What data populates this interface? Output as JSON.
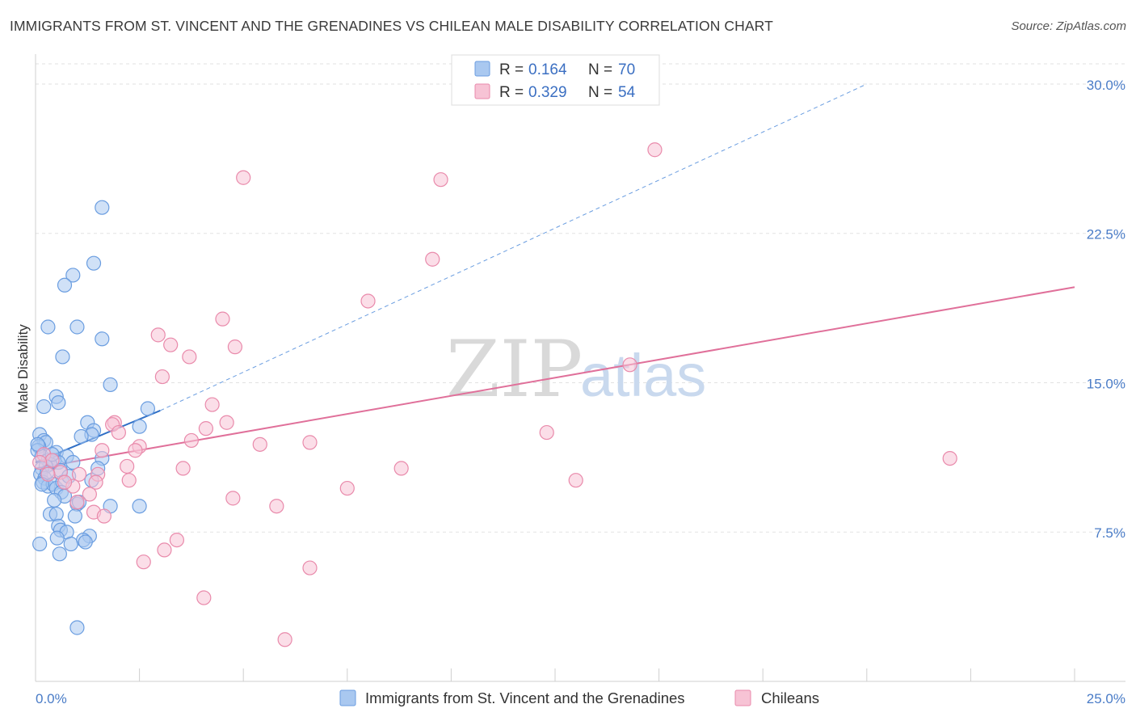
{
  "title": "IMMIGRANTS FROM ST. VINCENT AND THE GRENADINES VS CHILEAN MALE DISABILITY CORRELATION CHART",
  "source": "Source: ZipAtlas.com",
  "watermark": {
    "zip": "ZIP",
    "atlas": "atlas"
  },
  "colors": {
    "blue_fill": "#a9c8f0",
    "blue_stroke": "#6a9de0",
    "blue_line": "#2f6fc6",
    "pink_fill": "#f7c3d5",
    "pink_stroke": "#e98aab",
    "pink_line": "#e0709a",
    "grid": "#e2e2e2",
    "axis_label": "#4a7cc7"
  },
  "chart_data": {
    "type": "scatter",
    "title": "IMMIGRANTS FROM ST. VINCENT AND THE GRENADINES VS CHILEAN MALE DISABILITY CORRELATION CHART",
    "xlabel": "",
    "ylabel": "Male Disability",
    "xlim": [
      0,
      25
    ],
    "ylim": [
      0,
      31.5
    ],
    "x_tick_labels": {
      "left": "0.0%",
      "right": "25.0%"
    },
    "y_ticks": [
      {
        "value": 7.5,
        "label": "7.5%"
      },
      {
        "value": 15.0,
        "label": "15.0%"
      },
      {
        "value": 22.5,
        "label": "22.5%"
      },
      {
        "value": 30.0,
        "label": "30.0%"
      }
    ],
    "legend": [
      {
        "series": "blue",
        "r_label": "R =",
        "r_value": "0.164",
        "n_label": "N =",
        "n_value": "70"
      },
      {
        "series": "pink",
        "r_label": "R =",
        "r_value": "0.329",
        "n_label": "N =",
        "n_value": "54"
      }
    ],
    "series": [
      {
        "name": "Immigrants from St. Vincent and the Grenadines",
        "color": "blue",
        "trend": {
          "x0": 0.0,
          "y0": 11.0,
          "x1": 3.0,
          "y1": 13.6,
          "ext_x1": 20.0,
          "ext_y1": 30.0
        },
        "points": [
          [
            1.6,
            23.8
          ],
          [
            1.4,
            21.0
          ],
          [
            0.9,
            20.4
          ],
          [
            0.7,
            19.9
          ],
          [
            0.3,
            17.8
          ],
          [
            1.0,
            17.8
          ],
          [
            1.6,
            17.2
          ],
          [
            0.65,
            16.3
          ],
          [
            1.8,
            14.9
          ],
          [
            0.5,
            14.3
          ],
          [
            0.55,
            14.0
          ],
          [
            0.2,
            13.8
          ],
          [
            2.7,
            13.7
          ],
          [
            1.25,
            13.0
          ],
          [
            2.5,
            12.8
          ],
          [
            1.4,
            12.6
          ],
          [
            1.35,
            12.4
          ],
          [
            1.1,
            12.3
          ],
          [
            0.1,
            12.4
          ],
          [
            0.2,
            12.1
          ],
          [
            0.25,
            12.0
          ],
          [
            0.08,
            11.8
          ],
          [
            0.05,
            11.6
          ],
          [
            0.5,
            11.5
          ],
          [
            0.15,
            11.3
          ],
          [
            0.75,
            11.3
          ],
          [
            1.6,
            11.2
          ],
          [
            0.3,
            11.1
          ],
          [
            0.45,
            11.1
          ],
          [
            0.55,
            11.0
          ],
          [
            0.35,
            10.9
          ],
          [
            0.25,
            10.8
          ],
          [
            0.15,
            10.7
          ],
          [
            0.6,
            10.6
          ],
          [
            1.5,
            10.7
          ],
          [
            0.12,
            10.4
          ],
          [
            0.22,
            10.2
          ],
          [
            1.35,
            10.1
          ],
          [
            0.18,
            10.0
          ],
          [
            0.3,
            9.8
          ],
          [
            0.42,
            9.9
          ],
          [
            0.5,
            9.7
          ],
          [
            0.65,
            10.0
          ],
          [
            0.62,
            9.5
          ],
          [
            0.7,
            9.3
          ],
          [
            0.45,
            9.1
          ],
          [
            1.0,
            8.9
          ],
          [
            1.8,
            8.8
          ],
          [
            2.5,
            8.8
          ],
          [
            0.35,
            8.4
          ],
          [
            0.5,
            8.4
          ],
          [
            0.95,
            8.3
          ],
          [
            0.55,
            7.8
          ],
          [
            0.6,
            7.6
          ],
          [
            0.75,
            7.5
          ],
          [
            1.3,
            7.3
          ],
          [
            1.15,
            7.1
          ],
          [
            1.2,
            7.0
          ],
          [
            0.52,
            7.2
          ],
          [
            0.85,
            6.9
          ],
          [
            0.58,
            6.4
          ],
          [
            0.1,
            6.9
          ],
          [
            1.0,
            2.7
          ],
          [
            0.05,
            11.9
          ],
          [
            0.28,
            10.5
          ],
          [
            0.8,
            10.3
          ],
          [
            1.05,
            9.0
          ],
          [
            0.4,
            11.4
          ],
          [
            0.9,
            11.0
          ],
          [
            0.15,
            9.9
          ]
        ]
      },
      {
        "name": "Chileans",
        "color": "pink",
        "trend": {
          "x0": 0.0,
          "y0": 10.7,
          "x1": 25.0,
          "y1": 19.8
        },
        "points": [
          [
            14.9,
            26.7
          ],
          [
            5.0,
            25.3
          ],
          [
            9.75,
            25.2
          ],
          [
            9.55,
            21.2
          ],
          [
            8.0,
            19.1
          ],
          [
            4.5,
            18.2
          ],
          [
            2.95,
            17.4
          ],
          [
            3.25,
            16.9
          ],
          [
            4.8,
            16.8
          ],
          [
            3.7,
            16.3
          ],
          [
            14.3,
            15.9
          ],
          [
            3.05,
            15.3
          ],
          [
            4.25,
            13.9
          ],
          [
            1.9,
            13.0
          ],
          [
            1.85,
            12.9
          ],
          [
            4.6,
            13.0
          ],
          [
            4.1,
            12.7
          ],
          [
            2.0,
            12.5
          ],
          [
            12.3,
            12.5
          ],
          [
            3.75,
            12.1
          ],
          [
            6.6,
            12.0
          ],
          [
            5.4,
            11.9
          ],
          [
            2.5,
            11.8
          ],
          [
            2.4,
            11.6
          ],
          [
            1.6,
            11.6
          ],
          [
            22.0,
            11.2
          ],
          [
            0.2,
            11.4
          ],
          [
            0.4,
            11.1
          ],
          [
            2.2,
            10.8
          ],
          [
            3.55,
            10.7
          ],
          [
            8.8,
            10.7
          ],
          [
            0.6,
            10.5
          ],
          [
            1.05,
            10.4
          ],
          [
            0.3,
            10.4
          ],
          [
            1.5,
            10.4
          ],
          [
            2.25,
            10.1
          ],
          [
            13.0,
            10.1
          ],
          [
            1.45,
            10.0
          ],
          [
            0.9,
            9.8
          ],
          [
            0.7,
            10.0
          ],
          [
            7.5,
            9.7
          ],
          [
            1.3,
            9.4
          ],
          [
            4.75,
            9.2
          ],
          [
            5.8,
            8.8
          ],
          [
            1.4,
            8.5
          ],
          [
            1.65,
            8.3
          ],
          [
            3.4,
            7.1
          ],
          [
            3.1,
            6.6
          ],
          [
            2.6,
            6.0
          ],
          [
            6.6,
            5.7
          ],
          [
            4.05,
            4.2
          ],
          [
            6.0,
            2.1
          ],
          [
            0.1,
            11.0
          ],
          [
            1.0,
            9.0
          ]
        ]
      }
    ]
  }
}
